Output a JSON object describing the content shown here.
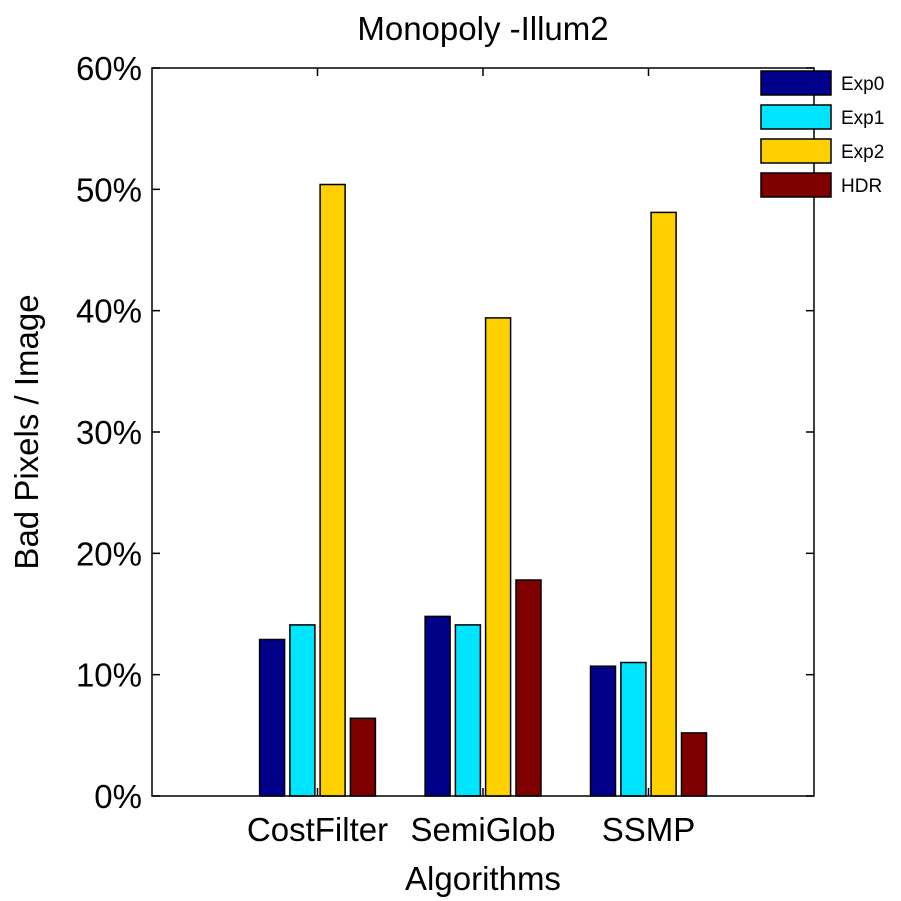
{
  "chart_data": {
    "type": "bar",
    "title": "Monopoly -Illum2",
    "xlabel": "Algorithms",
    "ylabel": "Bad Pixels / Image",
    "categories": [
      "CostFilter",
      "SemiGlob",
      "SSMP"
    ],
    "series": [
      {
        "name": "Exp0",
        "color": "#00008b",
        "values": [
          12.9,
          14.8,
          10.7
        ]
      },
      {
        "name": "Exp1",
        "color": "#00e5ff",
        "values": [
          14.1,
          14.1,
          11.0
        ]
      },
      {
        "name": "Exp2",
        "color": "#ffd000",
        "values": [
          50.4,
          39.4,
          48.1
        ]
      },
      {
        "name": "HDR",
        "color": "#800000",
        "values": [
          6.4,
          17.8,
          5.2
        ]
      }
    ],
    "ylim": [
      0,
      60
    ],
    "yticks": [
      0,
      10,
      20,
      30,
      40,
      50,
      60
    ],
    "ytick_labels": [
      "0%",
      "10%",
      "20%",
      "30%",
      "40%",
      "50%",
      "60%"
    ],
    "xlim": [
      0,
      4
    ],
    "grid": false,
    "legend_position": "top-right"
  }
}
